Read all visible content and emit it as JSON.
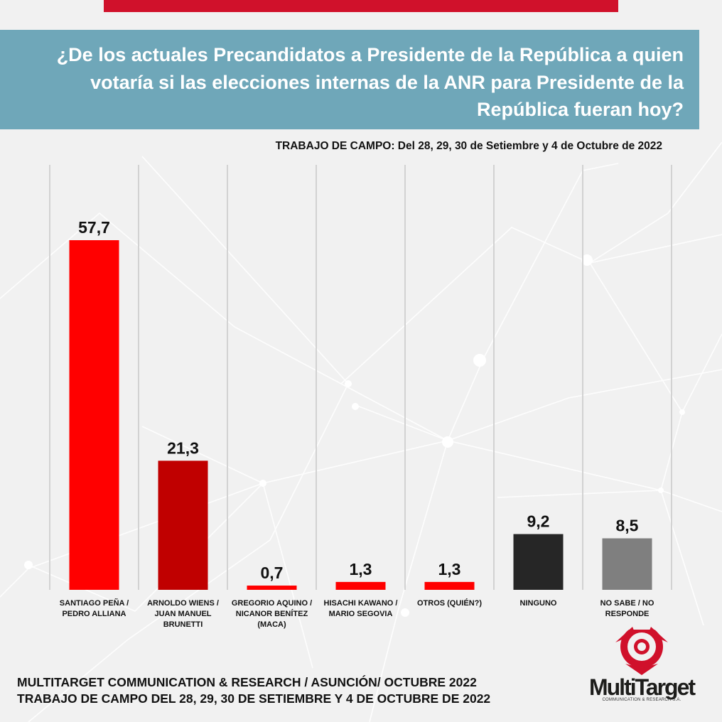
{
  "header": {
    "question": "¿De los actuales Precandidatos a Presidente de la República a quien votaría si las elecciones internas de la ANR para Presidente de la República fueran hoy?",
    "fieldwork": "TRABAJO DE CAMPO: Del 28, 29, 30  de Setiembre y 4  de Octubre  de  2022"
  },
  "chart_data": {
    "type": "bar",
    "categories": [
      [
        "SANTIAGO PEÑA /",
        "PEDRO ALLIANA"
      ],
      [
        "ARNOLDO WIENS /",
        "JUAN MANUEL",
        "BRUNETTI"
      ],
      [
        "GREGORIO AQUINO /",
        "NICANOR BENÍTEZ",
        "(MACA)"
      ],
      [
        "HISACHI KAWANO /",
        "MARIO SEGOVIA"
      ],
      [
        "OTROS (QUIÉN?)"
      ],
      [
        "NINGUNO"
      ],
      [
        "NO SABE / NO",
        "RESPONDE"
      ]
    ],
    "values": [
      57.7,
      21.3,
      0.7,
      1.3,
      1.3,
      9.2,
      8.5
    ],
    "value_labels": [
      "57,7",
      "21,3",
      "0,7",
      "1,3",
      "1,3",
      "9,2",
      "8,5"
    ],
    "colors": [
      "#ff0000",
      "#c00000",
      "#ff0000",
      "#ff0000",
      "#ff0000",
      "#262626",
      "#7f7f7f"
    ],
    "grid": "vertical",
    "legend": "none"
  },
  "footer": {
    "line1": "MULTITARGET COMMUNICATION & RESEARCH / ASUNCIÓN/ OCTUBRE 2022",
    "line2": "TRABAJO DE CAMPO DEL 28, 29, 30  DE SETIEMBRE Y 4  DE OCTUBRE  DE  2022"
  },
  "logo": {
    "name": "MultiTarget",
    "sub": "COMMUNICATION & RESEARCH S.A.",
    "color": "#d0112b"
  }
}
